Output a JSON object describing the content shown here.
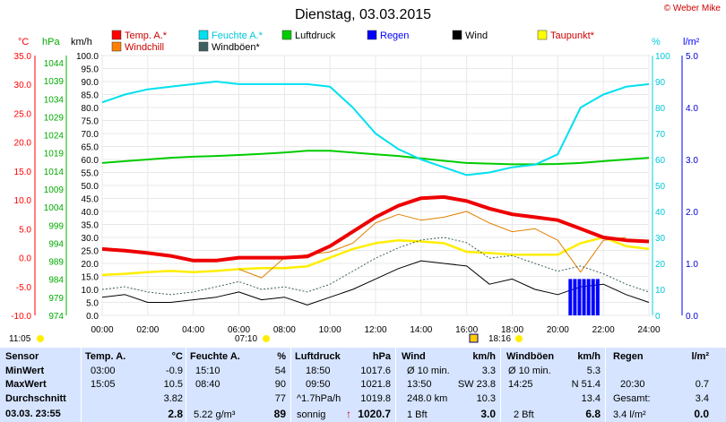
{
  "header": {
    "title": "Dienstag, 03.03.2015",
    "copyright": "© Weber Mike"
  },
  "axes": {
    "unit_temp": "°C",
    "unit_hpa": "hPa",
    "unit_kmh": "km/h",
    "unit_pct": "%",
    "unit_rain": "l/m²",
    "temp_ticks": [
      "35.0",
      "30.0",
      "25.0",
      "20.0",
      "15.0",
      "10.0",
      "5.0",
      "0.0",
      "-5.0",
      "-10.0"
    ],
    "hpa_ticks": [
      "1044",
      "1039",
      "1034",
      "1029",
      "1024",
      "1019",
      "1014",
      "1009",
      "1004",
      "999",
      "994",
      "989",
      "984",
      "979",
      "974"
    ],
    "kmh_ticks": [
      "100.0",
      "95.0",
      "90.0",
      "85.0",
      "80.0",
      "75.0",
      "70.0",
      "65.0",
      "60.0",
      "55.0",
      "50.0",
      "45.0",
      "40.0",
      "35.0",
      "30.0",
      "25.0",
      "20.0",
      "15.0",
      "10.0",
      "5.0",
      "0.0"
    ],
    "pct_ticks": [
      "100",
      "90",
      "80",
      "70",
      "60",
      "50",
      "40",
      "30",
      "20",
      "10",
      "0"
    ],
    "rain_ticks": [
      "5.0",
      "4.0",
      "3.0",
      "2.0",
      "1.0",
      "0.0"
    ],
    "time_ticks": [
      "00:00",
      "02:00",
      "04:00",
      "06:00",
      "08:00",
      "10:00",
      "12:00",
      "14:00",
      "16:00",
      "18:00",
      "20:00",
      "22:00",
      "24:00"
    ]
  },
  "sun": {
    "sunrise": "07:10",
    "sunset": "18:16",
    "moonrise": "11:05"
  },
  "legend": [
    {
      "label": "Temp. A.*",
      "color": "#ff0000"
    },
    {
      "label": "Feuchte A.*",
      "color": "#00e0f0"
    },
    {
      "label": "Luftdruck",
      "color": "#00cc00"
    },
    {
      "label": "Regen",
      "color": "#0000ff"
    },
    {
      "label": "Wind",
      "color": "#000000"
    },
    {
      "label": "Taupunkt*",
      "color": "#ffff00"
    },
    {
      "label": "Windchill",
      "color": "#ff8000"
    },
    {
      "label": "Windböen*",
      "color": "#406060"
    }
  ],
  "chart_data": {
    "type": "line",
    "title": "Dienstag, 03.03.2015",
    "xlabel": "",
    "x_hours": [
      0,
      1,
      2,
      3,
      4,
      5,
      6,
      7,
      8,
      9,
      10,
      11,
      12,
      13,
      14,
      15,
      16,
      17,
      18,
      19,
      20,
      21,
      22,
      23,
      24
    ],
    "series": [
      {
        "name": "Temp. A.*",
        "unit": "°C",
        "values": [
          1.5,
          1.2,
          0.8,
          0.3,
          -0.5,
          -0.5,
          0.0,
          0.0,
          0.0,
          0.2,
          2.0,
          4.5,
          7.0,
          9.0,
          10.3,
          10.5,
          9.8,
          8.5,
          7.5,
          7.0,
          6.5,
          5.0,
          3.5,
          3.0,
          2.8
        ]
      },
      {
        "name": "Feuchte A.*",
        "unit": "%",
        "values": [
          82,
          85,
          87,
          88,
          89,
          90,
          89,
          89,
          89,
          89,
          88,
          80,
          70,
          64,
          60,
          57,
          54,
          55,
          57,
          58,
          62,
          80,
          85,
          88,
          89
        ]
      },
      {
        "name": "Luftdruck",
        "unit": "hPa",
        "values": [
          1018.0,
          1018.5,
          1019.0,
          1019.5,
          1019.8,
          1020.0,
          1020.3,
          1020.6,
          1021.0,
          1021.5,
          1021.5,
          1021.0,
          1020.5,
          1020.0,
          1019.3,
          1018.6,
          1018.0,
          1017.8,
          1017.6,
          1017.6,
          1017.7,
          1018.0,
          1018.5,
          1019.0,
          1019.5
        ]
      },
      {
        "name": "Taupunkt*",
        "unit": "°C",
        "values": [
          -3.0,
          -2.8,
          -2.5,
          -2.3,
          -2.5,
          -2.3,
          -2.0,
          -1.8,
          -1.8,
          -1.5,
          0.0,
          1.5,
          2.5,
          3.0,
          2.8,
          2.5,
          1.0,
          0.8,
          0.5,
          0.5,
          0.5,
          2.5,
          3.5,
          2.0,
          1.5
        ]
      },
      {
        "name": "Windchill",
        "unit": "°C",
        "values": [
          null,
          null,
          null,
          null,
          null,
          null,
          -2.0,
          -3.5,
          0.0,
          0.5,
          1.0,
          2.5,
          6.0,
          7.5,
          6.5,
          7.0,
          8.0,
          6.0,
          4.5,
          5.0,
          3.0,
          -2.5,
          3.0,
          3.5,
          null
        ]
      },
      {
        "name": "Wind",
        "unit": "km/h",
        "values": [
          7,
          8,
          5,
          5,
          6,
          7,
          9,
          6,
          7,
          4,
          7,
          10,
          14,
          18,
          21,
          20,
          19,
          12,
          14,
          10,
          8,
          11,
          12,
          8,
          5
        ]
      },
      {
        "name": "Windböen*",
        "unit": "km/h",
        "values": [
          10,
          11,
          9,
          8,
          9,
          11,
          13,
          10,
          11,
          9,
          12,
          17,
          22,
          26,
          29,
          30,
          28,
          22,
          23,
          20,
          17,
          19,
          16,
          12,
          9
        ]
      },
      {
        "name": "Regen",
        "unit": "l/m²",
        "values": [
          0,
          0,
          0,
          0,
          0,
          0,
          0,
          0,
          0,
          0,
          0,
          0,
          0,
          0,
          0,
          0,
          0,
          0,
          0,
          0,
          0,
          0.7,
          0,
          0,
          0
        ]
      }
    ],
    "rain_bars": [
      {
        "hour": 20.55,
        "value": 0.7
      },
      {
        "hour": 20.75,
        "value": 0.7
      },
      {
        "hour": 20.95,
        "value": 0.7
      },
      {
        "hour": 21.15,
        "value": 0.7
      },
      {
        "hour": 21.35,
        "value": 0.7
      },
      {
        "hour": 21.55,
        "value": 0.7
      },
      {
        "hour": 21.75,
        "value": 0.7
      }
    ],
    "ylim_temp": [
      -10,
      35
    ],
    "ylim_hpa": [
      974,
      1049
    ],
    "ylim_kmh": [
      0,
      100
    ],
    "ylim_pct": [
      0,
      100
    ],
    "ylim_rain": [
      0,
      5
    ],
    "xlim": [
      0,
      24
    ],
    "grid": true
  },
  "table": {
    "col_sensor": {
      "head": "Sensor",
      "min": "MinWert",
      "max": "MaxWert",
      "avg": "Durchschnitt",
      "now": "03.03. 23:55"
    },
    "col_temp": {
      "head": "Temp. A.",
      "unit": "°C",
      "min_time": "03:00",
      "min_val": "-0.9",
      "max_time": "15:05",
      "max_val": "10.5",
      "avg": "3.82",
      "now": "2.8"
    },
    "col_hum": {
      "head": "Feuchte A.",
      "unit": "%",
      "min_time": "15:10",
      "min_val": "54",
      "max_time": "08:40",
      "max_val": "90",
      "avg": "77",
      "now_abs": "5.22 g/m³",
      "now": "89"
    },
    "col_press": {
      "head": "Luftdruck",
      "unit": "hPa",
      "min_time": "18:50",
      "min_val": "1017.6",
      "max_time": "09:50",
      "max_val": "1021.8",
      "avg_trend": "^1.7hPa/h",
      "avg": "1019.8",
      "forecast": "sonnig",
      "now_arrow": "↑",
      "now": "1020.7"
    },
    "col_wind": {
      "head": "Wind",
      "unit": "km/h",
      "min_label": "Ø 10 min.",
      "min_val": "3.3",
      "max_time": "13:50",
      "max_dir": "SW 23.8",
      "avg_dir": "248.0 km",
      "avg": "10.3",
      "now_bft": "1 Bft",
      "now": "3.0"
    },
    "col_gust": {
      "head": "Windböen",
      "unit": "km/h",
      "min_label": "Ø 10 min.",
      "min_val": "5.3",
      "max_time": "14:25",
      "max_dir": "N 51.4",
      "avg": "13.4",
      "now_bft": "2 Bft",
      "now": "6.8"
    },
    "col_rain": {
      "head": "Regen",
      "unit": "l/m²",
      "max_time": "20:30",
      "max_val": "0.7",
      "total_label": "Gesamt:",
      "total": "3.4",
      "now_total": "3.4 l/m²",
      "now": "0.0"
    }
  }
}
